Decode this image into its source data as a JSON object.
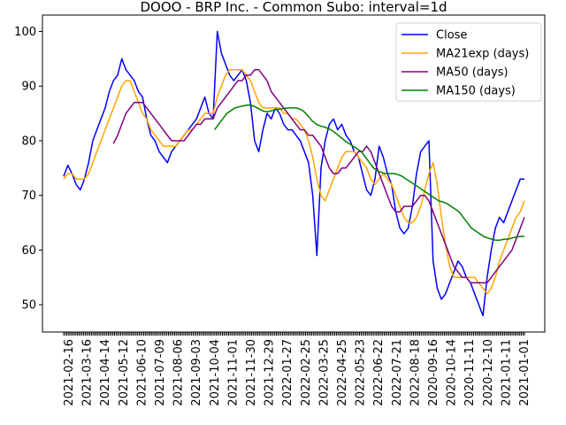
{
  "chart_data": {
    "type": "line",
    "title": "DOOO - BRP Inc. - Common Subo: interval=1d",
    "xlabel": "",
    "ylabel": "",
    "ylim": [
      45,
      103
    ],
    "yticks": [
      50,
      60,
      70,
      80,
      90,
      100
    ],
    "grid": false,
    "legend_position": "top-right",
    "x_tick_labels": [
      "2021-02-16",
      "2021-03-16",
      "2021-04-14",
      "2021-05-12",
      "2021-06-10",
      "2021-07-09",
      "2021-08-06",
      "2021-09-03",
      "2021-10-04",
      "2021-11-01",
      "2021-11-30",
      "2021-12-29",
      "2022-01-27",
      "2022-02-25",
      "2022-03-25",
      "2022-04-25",
      "2022-05-23",
      "2022-06-22",
      "2022-07-21",
      "2022-08-18",
      "2020-09-16",
      "2020-10-14",
      "2020-11-11",
      "2020-12-10",
      "2021-01-11",
      "2021-01-01"
    ],
    "series": [
      {
        "name": "Close",
        "color": "#0000ff",
        "values": [
          73.5,
          75.5,
          74,
          72,
          71,
          73,
          76,
          80,
          82,
          84,
          86,
          89,
          91,
          92,
          95,
          93,
          92,
          91,
          89,
          88,
          84,
          81,
          80,
          78,
          77,
          76,
          78,
          79,
          80,
          81,
          82,
          83,
          84,
          86,
          88,
          85,
          84,
          100,
          96,
          94,
          92,
          91,
          92,
          93,
          91,
          87,
          80,
          78,
          82,
          85,
          84,
          86,
          85,
          83,
          82,
          82,
          81,
          80,
          78,
          76,
          70,
          59,
          75,
          80,
          83,
          84,
          82,
          83,
          81,
          80,
          78,
          77,
          74,
          71,
          70,
          73,
          79,
          77,
          74,
          72,
          67,
          64,
          63,
          64,
          68,
          74,
          78,
          79,
          80,
          58,
          53,
          51,
          52,
          54,
          56,
          58,
          57,
          55,
          54,
          52,
          50,
          48,
          55,
          60,
          64,
          66,
          65,
          67,
          69,
          71,
          73,
          73
        ]
      },
      {
        "name": "MA21exp (days)",
        "color": "#ffa500",
        "values": [
          73,
          74,
          74,
          73,
          73,
          73,
          74,
          76,
          78,
          80,
          82,
          84,
          86,
          88,
          90,
          91,
          91,
          89,
          87,
          85,
          84,
          82,
          81,
          80,
          79,
          79,
          79,
          79,
          80,
          81,
          82,
          82,
          83,
          84,
          85,
          85,
          85,
          88,
          90,
          92,
          93,
          93,
          93,
          93,
          92,
          91,
          89,
          87,
          86,
          86,
          86,
          86,
          86,
          85,
          85,
          84,
          84,
          83,
          82,
          80,
          77,
          73,
          70,
          69,
          71,
          73,
          75,
          77,
          78,
          78,
          78,
          77,
          76,
          75,
          73,
          72,
          73,
          74,
          73,
          72,
          70,
          68,
          66,
          65,
          65,
          66,
          68,
          71,
          74,
          76,
          72,
          66,
          61,
          57,
          55,
          55,
          55,
          55,
          55,
          55,
          54,
          53,
          52,
          53,
          55,
          58,
          60,
          62,
          64,
          66,
          67,
          69
        ]
      },
      {
        "name": "MA50 (days)",
        "color": "#800080",
        "values": [
          null,
          null,
          null,
          null,
          null,
          null,
          null,
          null,
          null,
          null,
          null,
          null,
          79.5,
          81,
          83,
          85,
          86,
          87,
          87,
          87,
          86,
          85,
          84,
          83,
          82,
          81,
          80,
          80,
          80,
          80,
          81,
          82,
          83,
          83,
          84,
          84,
          84,
          86,
          87,
          88,
          89,
          90,
          91,
          91,
          92,
          92,
          93,
          93,
          92,
          91,
          89,
          88,
          87,
          86,
          85,
          84,
          83,
          82,
          82,
          81,
          81,
          80,
          79,
          77,
          75,
          74,
          74,
          75,
          75,
          76,
          77,
          78,
          78,
          79,
          78,
          76,
          74,
          72,
          70,
          68,
          67,
          67,
          68,
          68,
          68,
          69,
          70,
          70,
          69,
          67,
          65,
          63,
          61,
          59,
          57,
          56,
          55,
          55,
          54,
          54,
          54,
          54,
          54,
          55,
          56,
          57,
          58,
          59,
          60,
          62,
          64,
          66
        ]
      },
      {
        "name": "MA150 (days)",
        "color": "#008000",
        "values": [
          null,
          null,
          null,
          null,
          null,
          null,
          null,
          null,
          null,
          null,
          null,
          null,
          null,
          null,
          null,
          null,
          null,
          null,
          null,
          null,
          null,
          null,
          null,
          null,
          null,
          null,
          null,
          null,
          null,
          null,
          null,
          null,
          null,
          null,
          null,
          null,
          null,
          82,
          83,
          84,
          85,
          85.5,
          86,
          86.2,
          86.4,
          86.5,
          86.5,
          86.2,
          85.8,
          85.4,
          85.3,
          85.5,
          85.7,
          85.8,
          85.9,
          86,
          86,
          86,
          85.8,
          85.3,
          84.5,
          83.6,
          83,
          82.7,
          82.5,
          82.2,
          81.8,
          81.2,
          80.6,
          80,
          79.5,
          79,
          78.5,
          78,
          77,
          76,
          75,
          74.5,
          74.2,
          74,
          74,
          74,
          73.8,
          73.5,
          73,
          72.5,
          72,
          71.5,
          71,
          70.5,
          70,
          69.5,
          69,
          68.8,
          68.5,
          68,
          67.5,
          67,
          66,
          65,
          64,
          63.5,
          63,
          62.5,
          62.2,
          62,
          61.8,
          61.8,
          62,
          62,
          62.2,
          62.4,
          62.5,
          62.5
        ]
      }
    ]
  }
}
